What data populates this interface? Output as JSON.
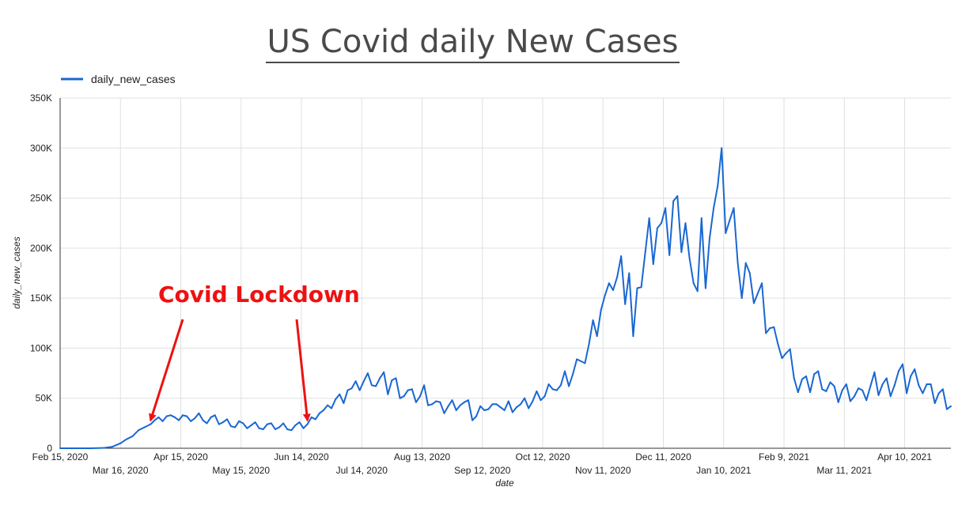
{
  "title": "US Covid daily New Cases",
  "colors": {
    "series": "#1967d2",
    "annotation": "#ee1111",
    "grid": "#e0e0e0"
  },
  "chart_data": {
    "type": "line",
    "xlabel": "date",
    "ylabel": "daily_new_cases",
    "ylim": [
      0,
      350000
    ],
    "xlim": [
      "2020-02-15",
      "2021-05-03"
    ],
    "grid": true,
    "legend_placement": "top-left",
    "y_ticks": [
      "0",
      "50K",
      "100K",
      "150K",
      "200K",
      "250K",
      "300K",
      "350K"
    ],
    "x_ticks": [
      {
        "date": "2020-02-15",
        "label": "Feb 15, 2020"
      },
      {
        "date": "2020-03-16",
        "label": "Mar 16, 2020"
      },
      {
        "date": "2020-04-15",
        "label": "Apr 15, 2020"
      },
      {
        "date": "2020-05-15",
        "label": "May 15, 2020"
      },
      {
        "date": "2020-06-14",
        "label": "Jun 14, 2020"
      },
      {
        "date": "2020-07-14",
        "label": "Jul 14, 2020"
      },
      {
        "date": "2020-08-13",
        "label": "Aug 13, 2020"
      },
      {
        "date": "2020-09-12",
        "label": "Sep 12, 2020"
      },
      {
        "date": "2020-10-12",
        "label": "Oct 12, 2020"
      },
      {
        "date": "2020-11-11",
        "label": "Nov 11, 2020"
      },
      {
        "date": "2020-12-11",
        "label": "Dec 11, 2020"
      },
      {
        "date": "2021-01-10",
        "label": "Jan 10, 2021"
      },
      {
        "date": "2021-02-09",
        "label": "Feb 9, 2021"
      },
      {
        "date": "2021-03-11",
        "label": "Mar 11, 2021"
      },
      {
        "date": "2021-04-10",
        "label": "Apr 10, 2021"
      }
    ],
    "series": [
      {
        "name": "daily_new_cases",
        "points": [
          [
            "2020-02-15",
            0
          ],
          [
            "2020-03-01",
            0
          ],
          [
            "2020-03-08",
            400
          ],
          [
            "2020-03-12",
            1500
          ],
          [
            "2020-03-16",
            5000
          ],
          [
            "2020-03-19",
            9000
          ],
          [
            "2020-03-22",
            12000
          ],
          [
            "2020-03-25",
            18000
          ],
          [
            "2020-03-28",
            21000
          ],
          [
            "2020-03-31",
            24000
          ],
          [
            "2020-04-02",
            28000
          ],
          [
            "2020-04-04",
            31000
          ],
          [
            "2020-04-06",
            27000
          ],
          [
            "2020-04-08",
            32000
          ],
          [
            "2020-04-10",
            33000
          ],
          [
            "2020-04-12",
            31000
          ],
          [
            "2020-04-14",
            28000
          ],
          [
            "2020-04-16",
            33000
          ],
          [
            "2020-04-18",
            32000
          ],
          [
            "2020-04-20",
            27000
          ],
          [
            "2020-04-22",
            30000
          ],
          [
            "2020-04-24",
            35000
          ],
          [
            "2020-04-26",
            28000
          ],
          [
            "2020-04-28",
            25000
          ],
          [
            "2020-04-30",
            31000
          ],
          [
            "2020-05-02",
            33000
          ],
          [
            "2020-05-04",
            24000
          ],
          [
            "2020-05-06",
            26000
          ],
          [
            "2020-05-08",
            29000
          ],
          [
            "2020-05-10",
            22000
          ],
          [
            "2020-05-12",
            21000
          ],
          [
            "2020-05-14",
            27000
          ],
          [
            "2020-05-16",
            25000
          ],
          [
            "2020-05-18",
            20000
          ],
          [
            "2020-05-20",
            23000
          ],
          [
            "2020-05-22",
            26000
          ],
          [
            "2020-05-24",
            20000
          ],
          [
            "2020-05-26",
            19000
          ],
          [
            "2020-05-28",
            24000
          ],
          [
            "2020-05-30",
            25000
          ],
          [
            "2020-06-01",
            19000
          ],
          [
            "2020-06-03",
            21000
          ],
          [
            "2020-06-05",
            25000
          ],
          [
            "2020-06-07",
            19000
          ],
          [
            "2020-06-09",
            18000
          ],
          [
            "2020-06-11",
            23000
          ],
          [
            "2020-06-13",
            26000
          ],
          [
            "2020-06-15",
            20000
          ],
          [
            "2020-06-17",
            24000
          ],
          [
            "2020-06-19",
            31000
          ],
          [
            "2020-06-21",
            29000
          ],
          [
            "2020-06-23",
            35000
          ],
          [
            "2020-06-25",
            38000
          ],
          [
            "2020-06-27",
            43000
          ],
          [
            "2020-06-29",
            40000
          ],
          [
            "2020-07-01",
            49000
          ],
          [
            "2020-07-03",
            54000
          ],
          [
            "2020-07-05",
            45000
          ],
          [
            "2020-07-07",
            58000
          ],
          [
            "2020-07-09",
            60000
          ],
          [
            "2020-07-11",
            67000
          ],
          [
            "2020-07-13",
            58000
          ],
          [
            "2020-07-15",
            67000
          ],
          [
            "2020-07-17",
            75000
          ],
          [
            "2020-07-19",
            63000
          ],
          [
            "2020-07-21",
            62000
          ],
          [
            "2020-07-23",
            70000
          ],
          [
            "2020-07-25",
            76000
          ],
          [
            "2020-07-27",
            54000
          ],
          [
            "2020-07-29",
            68000
          ],
          [
            "2020-07-31",
            70000
          ],
          [
            "2020-08-02",
            50000
          ],
          [
            "2020-08-04",
            52000
          ],
          [
            "2020-08-06",
            58000
          ],
          [
            "2020-08-08",
            59000
          ],
          [
            "2020-08-10",
            46000
          ],
          [
            "2020-08-12",
            52000
          ],
          [
            "2020-08-14",
            63000
          ],
          [
            "2020-08-16",
            43000
          ],
          [
            "2020-08-18",
            44000
          ],
          [
            "2020-08-20",
            47000
          ],
          [
            "2020-08-22",
            46000
          ],
          [
            "2020-08-24",
            35000
          ],
          [
            "2020-08-26",
            42000
          ],
          [
            "2020-08-28",
            48000
          ],
          [
            "2020-08-30",
            38000
          ],
          [
            "2020-09-01",
            43000
          ],
          [
            "2020-09-03",
            46000
          ],
          [
            "2020-09-05",
            48000
          ],
          [
            "2020-09-07",
            28000
          ],
          [
            "2020-09-09",
            32000
          ],
          [
            "2020-09-11",
            42000
          ],
          [
            "2020-09-13",
            38000
          ],
          [
            "2020-09-15",
            39000
          ],
          [
            "2020-09-17",
            44000
          ],
          [
            "2020-09-19",
            44000
          ],
          [
            "2020-09-21",
            41000
          ],
          [
            "2020-09-23",
            38000
          ],
          [
            "2020-09-25",
            47000
          ],
          [
            "2020-09-27",
            36000
          ],
          [
            "2020-09-29",
            41000
          ],
          [
            "2020-10-01",
            44000
          ],
          [
            "2020-10-03",
            50000
          ],
          [
            "2020-10-05",
            40000
          ],
          [
            "2020-10-07",
            47000
          ],
          [
            "2020-10-09",
            57000
          ],
          [
            "2020-10-11",
            48000
          ],
          [
            "2020-10-13",
            52000
          ],
          [
            "2020-10-15",
            64000
          ],
          [
            "2020-10-17",
            59000
          ],
          [
            "2020-10-19",
            58000
          ],
          [
            "2020-10-21",
            63000
          ],
          [
            "2020-10-23",
            77000
          ],
          [
            "2020-10-25",
            62000
          ],
          [
            "2020-10-27",
            74000
          ],
          [
            "2020-10-29",
            89000
          ],
          [
            "2020-10-31",
            87000
          ],
          [
            "2020-11-02",
            85000
          ],
          [
            "2020-11-04",
            104000
          ],
          [
            "2020-11-06",
            128000
          ],
          [
            "2020-11-08",
            112000
          ],
          [
            "2020-11-10",
            138000
          ],
          [
            "2020-11-12",
            153000
          ],
          [
            "2020-11-14",
            165000
          ],
          [
            "2020-11-16",
            158000
          ],
          [
            "2020-11-18",
            171000
          ],
          [
            "2020-11-20",
            192000
          ],
          [
            "2020-11-22",
            144000
          ],
          [
            "2020-11-24",
            175000
          ],
          [
            "2020-11-26",
            112000
          ],
          [
            "2020-11-28",
            160000
          ],
          [
            "2020-11-30",
            161000
          ],
          [
            "2020-12-02",
            196000
          ],
          [
            "2020-12-04",
            230000
          ],
          [
            "2020-12-06",
            184000
          ],
          [
            "2020-12-08",
            220000
          ],
          [
            "2020-12-10",
            225000
          ],
          [
            "2020-12-12",
            240000
          ],
          [
            "2020-12-14",
            193000
          ],
          [
            "2020-12-16",
            247000
          ],
          [
            "2020-12-18",
            252000
          ],
          [
            "2020-12-20",
            196000
          ],
          [
            "2020-12-22",
            225000
          ],
          [
            "2020-12-24",
            190000
          ],
          [
            "2020-12-26",
            165000
          ],
          [
            "2020-12-28",
            157000
          ],
          [
            "2020-12-30",
            230000
          ],
          [
            "2021-01-01",
            160000
          ],
          [
            "2021-01-03",
            210000
          ],
          [
            "2021-01-05",
            240000
          ],
          [
            "2021-01-07",
            262000
          ],
          [
            "2021-01-09",
            300000
          ],
          [
            "2021-01-11",
            215000
          ],
          [
            "2021-01-13",
            228000
          ],
          [
            "2021-01-15",
            240000
          ],
          [
            "2021-01-17",
            185000
          ],
          [
            "2021-01-19",
            150000
          ],
          [
            "2021-01-21",
            185000
          ],
          [
            "2021-01-23",
            175000
          ],
          [
            "2021-01-25",
            145000
          ],
          [
            "2021-01-27",
            155000
          ],
          [
            "2021-01-29",
            165000
          ],
          [
            "2021-01-31",
            115000
          ],
          [
            "2021-02-02",
            120000
          ],
          [
            "2021-02-04",
            121000
          ],
          [
            "2021-02-06",
            104000
          ],
          [
            "2021-02-08",
            90000
          ],
          [
            "2021-02-10",
            95000
          ],
          [
            "2021-02-12",
            99000
          ],
          [
            "2021-02-14",
            70000
          ],
          [
            "2021-02-16",
            56000
          ],
          [
            "2021-02-18",
            69000
          ],
          [
            "2021-02-20",
            72000
          ],
          [
            "2021-02-22",
            56000
          ],
          [
            "2021-02-24",
            74000
          ],
          [
            "2021-02-26",
            77000
          ],
          [
            "2021-02-28",
            59000
          ],
          [
            "2021-03-02",
            57000
          ],
          [
            "2021-03-04",
            66000
          ],
          [
            "2021-03-06",
            62000
          ],
          [
            "2021-03-08",
            46000
          ],
          [
            "2021-03-10",
            58000
          ],
          [
            "2021-03-12",
            64000
          ],
          [
            "2021-03-14",
            47000
          ],
          [
            "2021-03-16",
            52000
          ],
          [
            "2021-03-18",
            60000
          ],
          [
            "2021-03-20",
            58000
          ],
          [
            "2021-03-22",
            48000
          ],
          [
            "2021-03-24",
            62000
          ],
          [
            "2021-03-26",
            76000
          ],
          [
            "2021-03-28",
            53000
          ],
          [
            "2021-03-30",
            64000
          ],
          [
            "2021-04-01",
            70000
          ],
          [
            "2021-04-03",
            52000
          ],
          [
            "2021-04-05",
            63000
          ],
          [
            "2021-04-07",
            77000
          ],
          [
            "2021-04-09",
            84000
          ],
          [
            "2021-04-11",
            55000
          ],
          [
            "2021-04-13",
            72000
          ],
          [
            "2021-04-15",
            79000
          ],
          [
            "2021-04-17",
            63000
          ],
          [
            "2021-04-19",
            55000
          ],
          [
            "2021-04-21",
            64000
          ],
          [
            "2021-04-23",
            64000
          ],
          [
            "2021-04-25",
            45000
          ],
          [
            "2021-04-27",
            55000
          ],
          [
            "2021-04-29",
            59000
          ],
          [
            "2021-05-01",
            39000
          ],
          [
            "2021-05-03",
            42000
          ]
        ]
      }
    ],
    "annotations": [
      {
        "text": "Covid Lockdown",
        "arrows": [
          {
            "date": "2020-03-31",
            "value": 28000
          },
          {
            "date": "2020-06-17",
            "value": 28000
          }
        ]
      }
    ]
  }
}
